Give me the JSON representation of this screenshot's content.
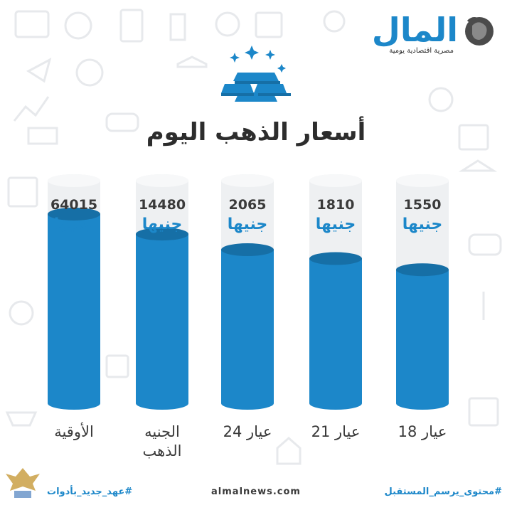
{
  "logo": {
    "name": "المال",
    "tagline": "مصرية اقتصادية يومية"
  },
  "chart_data": {
    "type": "bar",
    "title": "أسعار الذهب اليوم",
    "unit": "جنيها",
    "categories": [
      "الأوقية",
      "الجنيه الذهب",
      "عيار 24",
      "عيار 21",
      "عيار 18"
    ],
    "category_lines": [
      [
        "الأوقية"
      ],
      [
        "الجنيه",
        "الذهب"
      ],
      [
        "عيار 24"
      ],
      [
        "عيار 21"
      ],
      [
        "عيار 18"
      ]
    ],
    "values": [
      64015,
      14480,
      2065,
      1810,
      1550
    ],
    "fill_levels": [
      0.85,
      0.76,
      0.69,
      0.65,
      0.6
    ],
    "colors": {
      "fill": "#1c87c9",
      "fill_dark": "#166fa6",
      "tube": "#eef0f2",
      "unit": "#1c87c9"
    }
  },
  "footer": {
    "left_hashtag": "#عهد_جديد_بأدوات",
    "center_url": "almalnews.com",
    "right_hashtag": "#محتوى_يرسم_المستقبل"
  }
}
